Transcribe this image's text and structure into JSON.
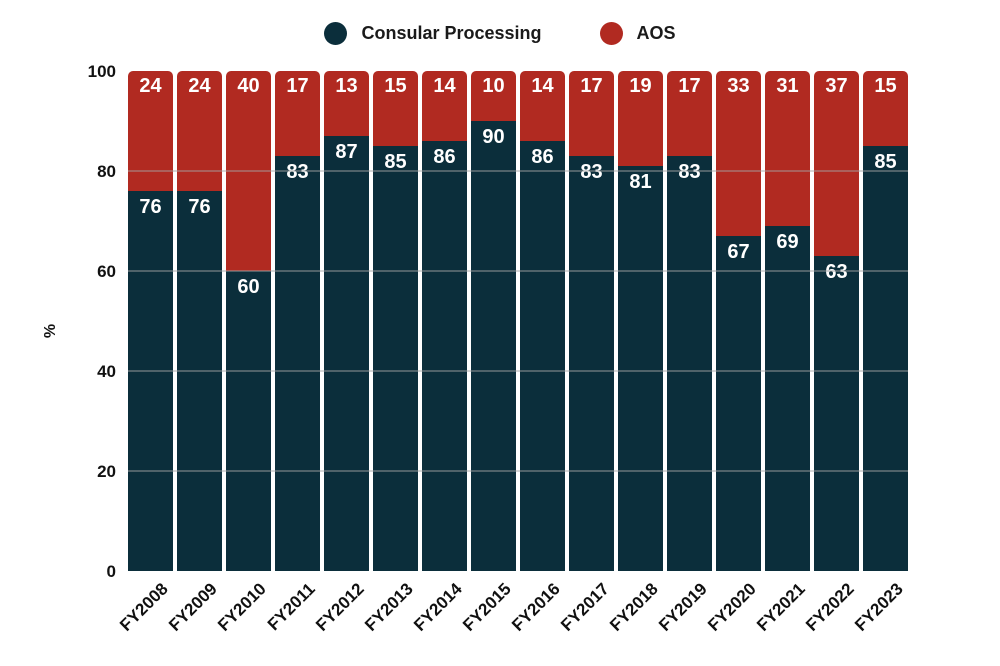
{
  "chart_data": {
    "type": "bar",
    "stacked": true,
    "orientation": "vertical",
    "title": "",
    "xlabel": "",
    "ylabel": "%",
    "ylim": [
      0,
      100
    ],
    "yticks": [
      0,
      20,
      40,
      60,
      80,
      100
    ],
    "gridlines": [
      20,
      40,
      60,
      80
    ],
    "grid_on": true,
    "legend_position": "top-center",
    "categories": [
      "FY2008",
      "FY2009",
      "FY2010",
      "FY2011",
      "FY2012",
      "FY2013",
      "FY2014",
      "FY2015",
      "FY2016",
      "FY2017",
      "FY2018",
      "FY2019",
      "FY2020",
      "FY2021",
      "FY2022",
      "FY2023"
    ],
    "series": [
      {
        "name": "Consular Processing",
        "color": "#0b2e3b",
        "values": [
          76,
          76,
          60,
          83,
          87,
          85,
          86,
          90,
          86,
          83,
          81,
          83,
          67,
          69,
          63,
          85
        ]
      },
      {
        "name": "AOS",
        "color": "#b12a21",
        "values": [
          24,
          24,
          40,
          17,
          13,
          15,
          14,
          10,
          14,
          17,
          19,
          17,
          33,
          31,
          37,
          15
        ]
      }
    ],
    "bar_label_color": "#ffffff",
    "axis_label_color": "#111111"
  }
}
